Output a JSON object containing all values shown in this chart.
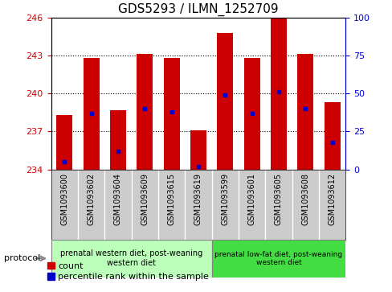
{
  "title": "GDS5293 / ILMN_1252709",
  "samples": [
    "GSM1093600",
    "GSM1093602",
    "GSM1093604",
    "GSM1093609",
    "GSM1093615",
    "GSM1093619",
    "GSM1093599",
    "GSM1093601",
    "GSM1093605",
    "GSM1093608",
    "GSM1093612"
  ],
  "bar_values": [
    238.3,
    242.8,
    238.7,
    243.1,
    242.8,
    237.1,
    244.8,
    242.8,
    246.0,
    243.1,
    239.3
  ],
  "percentile_values": [
    5,
    37,
    12,
    40,
    38,
    2,
    49,
    37,
    51,
    40,
    18
  ],
  "ylim_left": [
    234,
    246
  ],
  "ylim_right": [
    0,
    100
  ],
  "yticks_left": [
    234,
    237,
    240,
    243,
    246
  ],
  "yticks_right": [
    0,
    25,
    50,
    75,
    100
  ],
  "bar_color": "#CC0000",
  "percentile_color": "#0000CC",
  "bar_width": 0.6,
  "bg_color": "#FFFFFF",
  "plot_bg_color": "#FFFFFF",
  "group1_label": "prenatal western diet, post-weaning\nwestern diet",
  "group2_label": "prenatal low-fat diet, post-weaning\nwestern diet",
  "group1_count": 6,
  "group2_count": 5,
  "group1_bg": "#BBFFBB",
  "group2_bg": "#44DD44",
  "sample_box_bg": "#CCCCCC",
  "protocol_label": "protocol",
  "legend_count_label": "count",
  "legend_pct_label": "percentile rank within the sample",
  "ticklabel_left_color": "#CC0000",
  "ticklabel_right_color": "#0000CC",
  "title_fontsize": 11,
  "tick_fontsize": 8,
  "sample_fontsize": 7,
  "legend_fontsize": 8,
  "annot_fontsize": 7
}
